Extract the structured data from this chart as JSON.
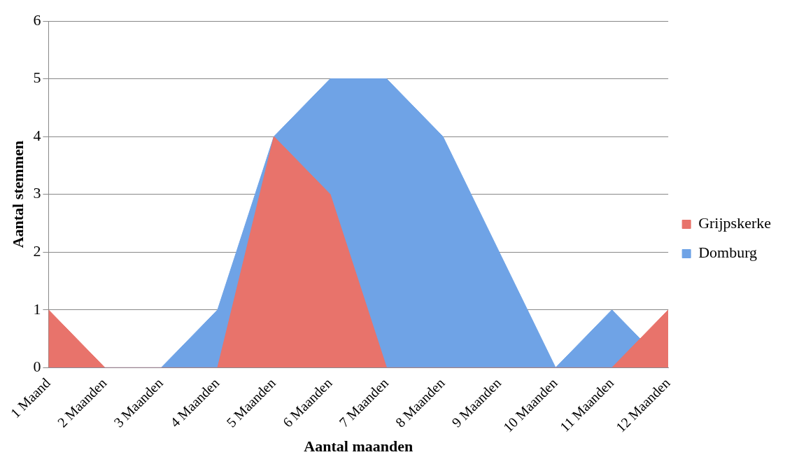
{
  "chart_data": {
    "type": "area",
    "xlabel": "Aantal maanden",
    "ylabel": "Aantal stemmen",
    "categories": [
      "1 Maand",
      "2 Maanden",
      "3 Maanden",
      "4 Maanden",
      "5 Maanden",
      "6 Maanden",
      "7 Maanden",
      "8 Maanden",
      "9 Maanden",
      "10 Maanden",
      "11 Maanden",
      "12 Maanden"
    ],
    "series": [
      {
        "name": "Domburg",
        "color": "#6fa3e6",
        "values": [
          0,
          0,
          0,
          1,
          4,
          5,
          5,
          4,
          2,
          0,
          1,
          0
        ]
      },
      {
        "name": "Grijpskerke",
        "color": "#e8736b",
        "values": [
          1,
          0,
          0,
          0,
          4,
          3,
          0,
          0,
          0,
          0,
          0,
          1
        ]
      }
    ],
    "ylim": [
      0,
      6
    ],
    "yticks": [
      0,
      1,
      2,
      3,
      4,
      5,
      6
    ],
    "grid": "y",
    "legend": "right"
  }
}
